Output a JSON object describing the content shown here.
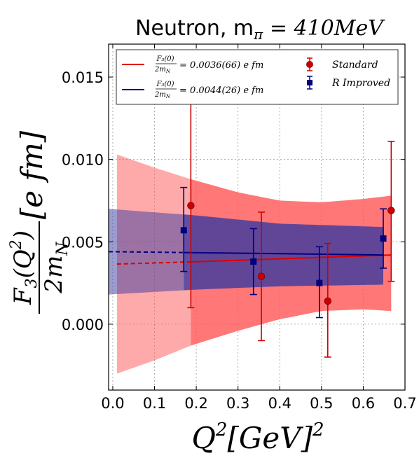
{
  "chart_data": {
    "type": "scatter",
    "title": "Neutron, m",
    "title_sub": "π",
    "title_value": " = 410MeV",
    "xlabel": {
      "base": "Q",
      "exp": "2",
      "unit": "[GeV]",
      "unit_exp": "2"
    },
    "ylabel": {
      "numerator": "F",
      "num_sub": "3",
      "num_arg": "(Q",
      "num_arg_exp": "2",
      "num_close": ")",
      "denominator": "2m",
      "den_sub": "N",
      "unit": "[e fm]"
    },
    "xlim": [
      -0.01,
      0.7
    ],
    "ylim": [
      -0.004,
      0.017
    ],
    "xticks": [
      0.0,
      0.1,
      0.2,
      0.3,
      0.4,
      0.5,
      0.6,
      0.7
    ],
    "xtick_labels": [
      "0.0",
      "0.1",
      "0.2",
      "0.3",
      "0.4",
      "0.5",
      "0.6",
      "0.7"
    ],
    "yticks": [
      0.0,
      0.005,
      0.01,
      0.015
    ],
    "ytick_labels": [
      "0.000",
      "0.005",
      "0.010",
      "0.015"
    ],
    "grid": true,
    "legend_position": "top",
    "series": [
      {
        "name": "Standard",
        "color": "#cc0000",
        "marker": "circle",
        "x": [
          0.187,
          0.356,
          0.515,
          0.667
        ],
        "y": [
          0.0072,
          0.0029,
          0.0014,
          0.0069
        ],
        "yerr_low": [
          0.001,
          -0.001,
          -0.002,
          0.0026
        ],
        "yerr_high": [
          0.0134,
          0.0068,
          0.0049,
          0.0111
        ]
      },
      {
        "name": "R Improved",
        "color": "#000080",
        "marker": "square",
        "x": [
          0.17,
          0.337,
          0.495,
          0.648
        ],
        "y": [
          0.0057,
          0.0038,
          0.0025,
          0.0052
        ],
        "yerr_low": [
          0.0032,
          0.0018,
          0.0004,
          0.0034
        ],
        "yerr_high": [
          0.0083,
          0.0058,
          0.0047,
          0.007
        ]
      }
    ],
    "fits": [
      {
        "legend_label": "= 0.0036(66) e fm",
        "legend_frac_num": "F₃(0)",
        "legend_frac_den": "2m",
        "legend_frac_den_sub": "N",
        "color": "#dd0000",
        "band_color": "#ff5555",
        "x_start": 0.01,
        "x_data_start": 0.187,
        "x_end": 0.667,
        "line": [
          [
            0.01,
            0.00365
          ],
          [
            0.187,
            0.00378
          ],
          [
            0.667,
            0.0042
          ]
        ],
        "band_upper": [
          [
            0.01,
            0.0103
          ],
          [
            0.1,
            0.0095
          ],
          [
            0.187,
            0.0088
          ],
          [
            0.3,
            0.008
          ],
          [
            0.4,
            0.0075
          ],
          [
            0.5,
            0.0074
          ],
          [
            0.6,
            0.0076
          ],
          [
            0.667,
            0.0078
          ]
        ],
        "band_lower": [
          [
            0.01,
            -0.003
          ],
          [
            0.1,
            -0.0022
          ],
          [
            0.187,
            -0.0013
          ],
          [
            0.3,
            -0.0004
          ],
          [
            0.4,
            0.0003
          ],
          [
            0.5,
            0.0008
          ],
          [
            0.6,
            0.0009
          ],
          [
            0.667,
            0.0008
          ]
        ]
      },
      {
        "legend_label": "= 0.0044(26) e fm",
        "legend_frac_num": "F₃(0)",
        "legend_frac_den": "2m",
        "legend_frac_den_sub": "N",
        "color": "#000080",
        "band_color": "#3a3aa0",
        "x_start": -0.01,
        "x_data_start": 0.17,
        "x_end": 0.648,
        "line": [
          [
            -0.01,
            0.0044
          ],
          [
            0.17,
            0.00435
          ],
          [
            0.648,
            0.0042
          ]
        ],
        "band_upper": [
          [
            -0.01,
            0.007
          ],
          [
            0.2,
            0.0066
          ],
          [
            0.4,
            0.0061
          ],
          [
            0.648,
            0.0059
          ]
        ],
        "band_lower": [
          [
            -0.01,
            0.0018
          ],
          [
            0.2,
            0.0021
          ],
          [
            0.4,
            0.0023
          ],
          [
            0.648,
            0.0024
          ]
        ]
      }
    ]
  }
}
